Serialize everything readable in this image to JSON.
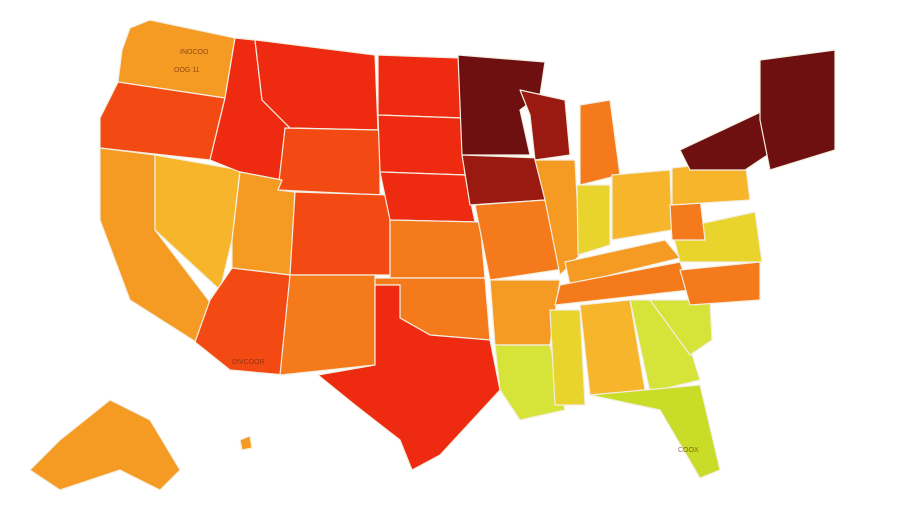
{
  "map": {
    "type": "choropleth",
    "region": "United States",
    "palette": {
      "darkest": "#6e1010",
      "dark": "#9a1a12",
      "red": "#ee2a10",
      "red_orange": "#f34a14",
      "orange": "#f57a1c",
      "orange_light": "#f59a22",
      "amber": "#f6b52a",
      "yellow": "#e8d42c",
      "yellow_green": "#d6e43a",
      "lime": "#c9dc28"
    },
    "labels": {
      "oregon": "OOG 11",
      "washington": "INOCOO",
      "arizona": "DIVCOOR",
      "florida": "COOX"
    }
  }
}
